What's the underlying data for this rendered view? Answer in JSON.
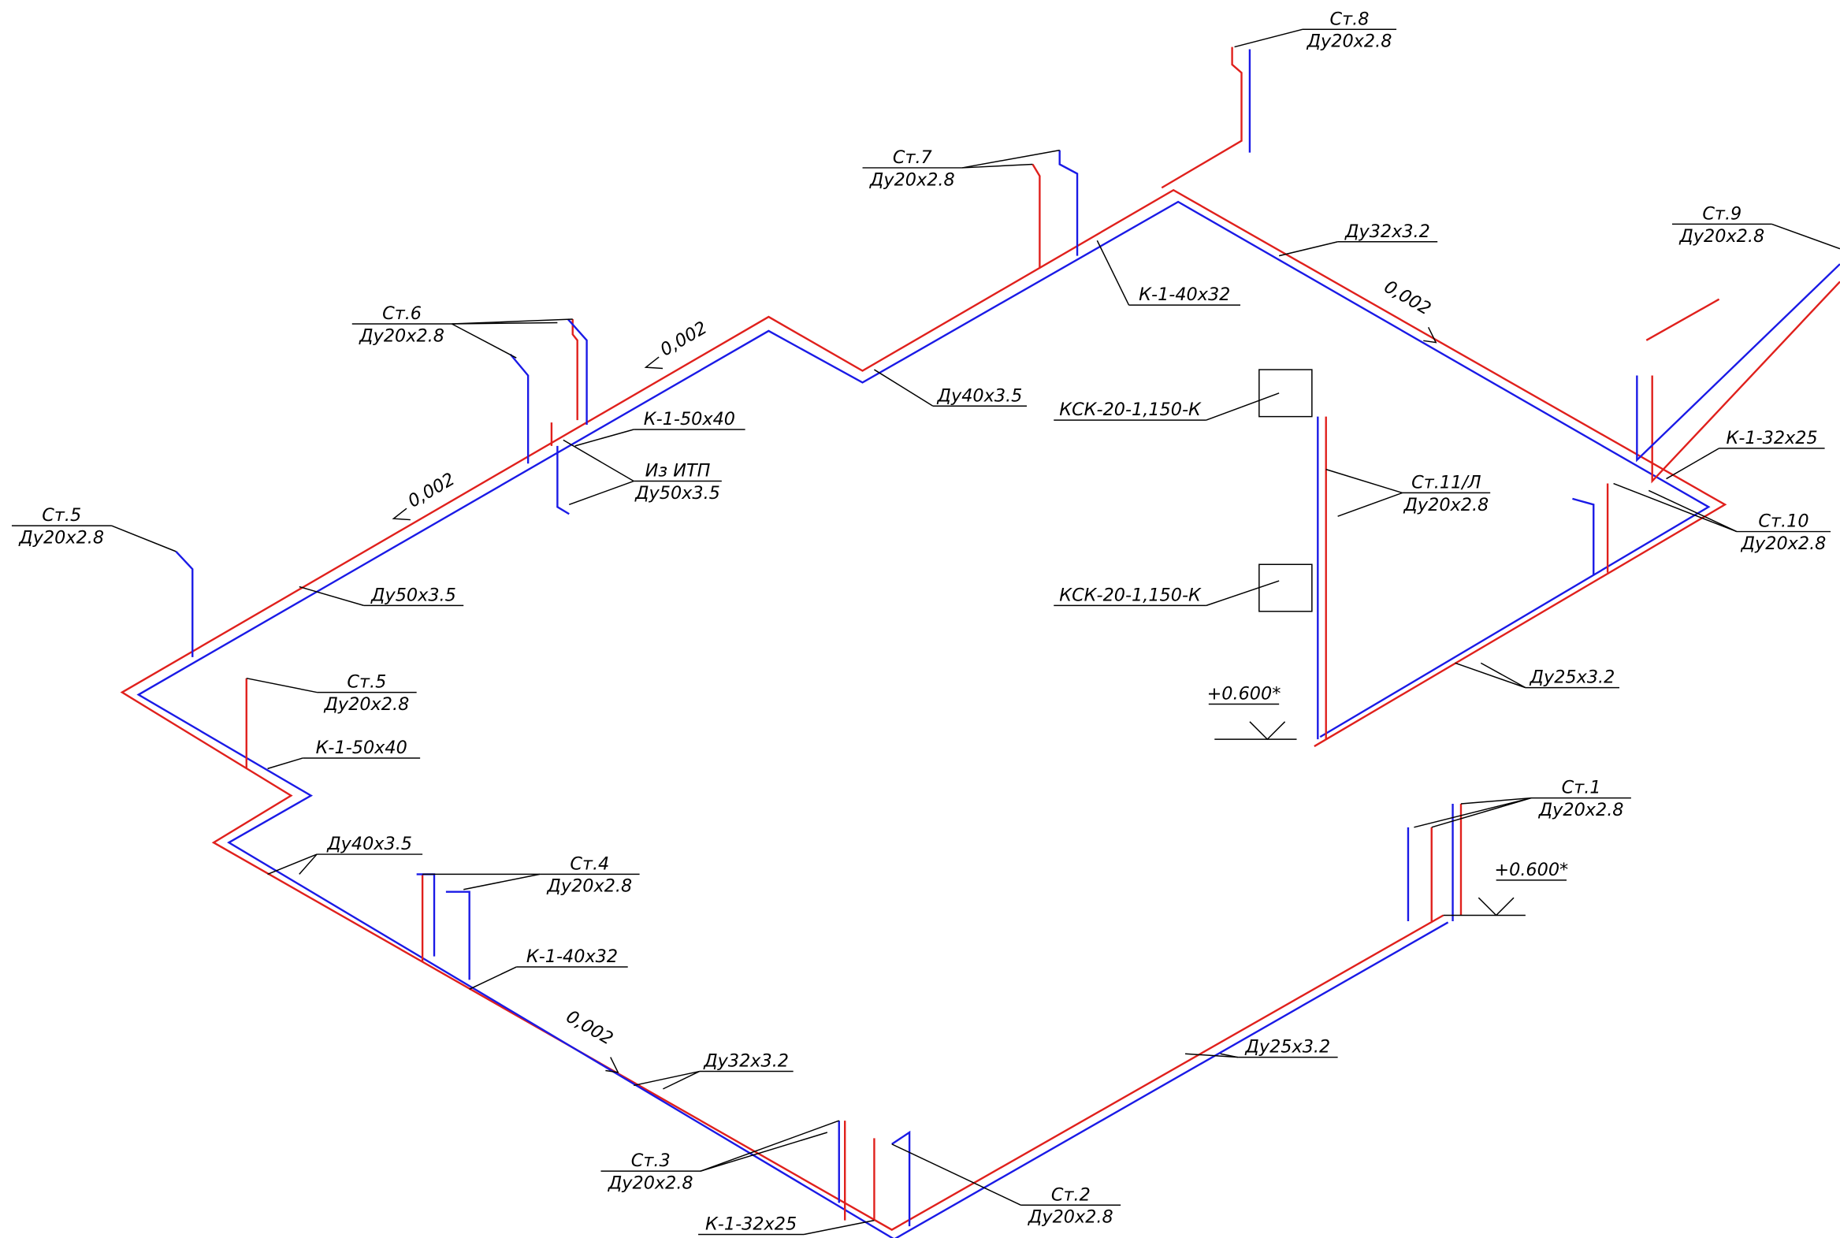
{
  "labels": [
    {
      "lines": [
        "Ст.8",
        "Ду20х2.8"
      ]
    },
    {
      "lines": [
        "Ст.7",
        "Ду20х2.8"
      ]
    },
    {
      "lines": [
        "Ст.6",
        "Ду20х2.8"
      ]
    },
    {
      "lines": [
        "Ст.5",
        "Ду20х2.8"
      ]
    },
    {
      "lines": [
        "Ст.5",
        "Ду20х2.8"
      ]
    },
    {
      "lines": [
        "К-1-50х40"
      ]
    },
    {
      "lines": [
        "Ду40х3.5"
      ]
    },
    {
      "lines": [
        "Ст.4",
        "Ду20х2.8"
      ]
    },
    {
      "lines": [
        "К-1-40х32"
      ]
    },
    {
      "lines": [
        "0,002"
      ]
    },
    {
      "lines": [
        "Ду32х3.2"
      ]
    },
    {
      "lines": [
        "Ст.3",
        "Ду20х2.8"
      ]
    },
    {
      "lines": [
        "К-1-32х25"
      ]
    },
    {
      "lines": [
        "Ст.2",
        "Ду20х2.8"
      ]
    },
    {
      "lines": [
        "Ду25х3.2"
      ]
    },
    {
      "lines": [
        "Ст.1",
        "Ду20х2.8"
      ]
    },
    {
      "lines": [
        "+0.600*"
      ]
    },
    {
      "lines": [
        "+0.600*"
      ]
    },
    {
      "lines": [
        "КСК-20-1,150-К"
      ]
    },
    {
      "lines": [
        "КСК-20-1,150-К"
      ]
    },
    {
      "lines": [
        "Ст.11/Л",
        "Ду20х2.8"
      ]
    },
    {
      "lines": [
        "Ду25х3.2"
      ]
    },
    {
      "lines": [
        "Ст.10",
        "Ду20х2.8"
      ]
    },
    {
      "lines": [
        "К-1-32х25"
      ]
    },
    {
      "lines": [
        "Ст.9",
        "Ду20х2.8"
      ]
    },
    {
      "lines": [
        "Ду32х3.2"
      ]
    },
    {
      "lines": [
        "0,002"
      ]
    },
    {
      "lines": [
        "К-1-40х32"
      ]
    },
    {
      "lines": [
        "Ду40х3.5"
      ]
    },
    {
      "lines": [
        "0,002"
      ]
    },
    {
      "lines": [
        "К-1-50х40"
      ]
    },
    {
      "lines": [
        "Из ИТП",
        "Ду50х3.5"
      ]
    },
    {
      "lines": [
        "0,002"
      ]
    },
    {
      "lines": [
        "Ду50х3.5"
      ]
    }
  ]
}
